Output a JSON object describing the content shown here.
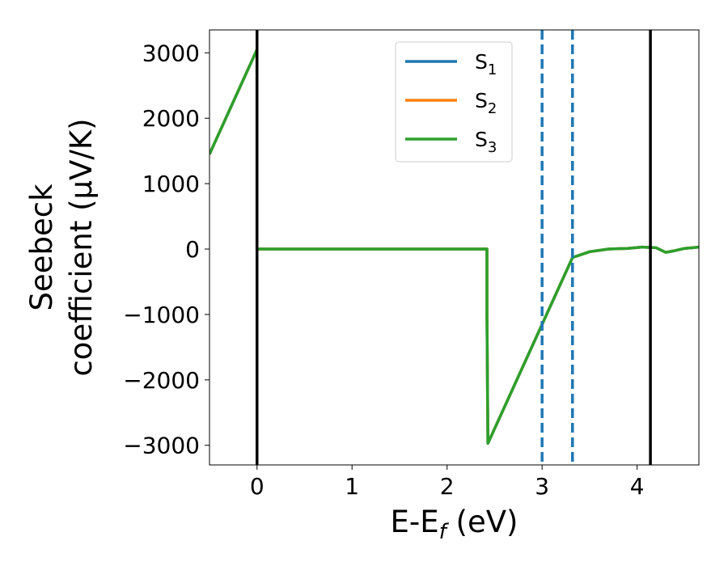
{
  "chart_data": {
    "type": "line",
    "xlabel": {
      "main": "E-E",
      "sub": "f",
      "suffix": " (eV)"
    },
    "ylabel": {
      "line1": "Seebeck",
      "line2": "coefficient  (μV/K)"
    },
    "xlim": [
      -0.5,
      4.65
    ],
    "ylim": [
      -3300,
      3350
    ],
    "xticks": [
      0,
      1,
      2,
      3,
      4
    ],
    "xtick_labels": [
      "0",
      "1",
      "2",
      "3",
      "4"
    ],
    "yticks": [
      3000,
      2000,
      1000,
      0,
      -1000,
      -2000,
      -3000
    ],
    "ytick_labels": [
      "3000",
      "2000",
      "1000",
      "0",
      "−1000",
      "−2000",
      "−3000"
    ],
    "grid": false,
    "legend_position": "upper-center",
    "series": [
      {
        "name": "S",
        "subscript": "1",
        "color": "#1f77b4",
        "x": [
          -0.5,
          0.0,
          0.0,
          2.42,
          2.42,
          2.43,
          3.0,
          3.32,
          3.5,
          3.7,
          3.9,
          4.05,
          4.2,
          4.3,
          4.38,
          4.5,
          4.65
        ],
        "y": [
          1450,
          3050,
          0,
          0,
          -1000,
          -2970,
          -1150,
          -130,
          -40,
          0,
          10,
          30,
          20,
          -50,
          -30,
          10,
          30
        ]
      },
      {
        "name": "S",
        "subscript": "2",
        "color": "#ff7f0e",
        "x": [
          -0.5,
          0.0,
          0.0,
          2.42,
          2.42,
          2.43,
          3.0,
          3.32,
          3.5,
          3.7,
          3.9,
          4.05,
          4.2,
          4.3,
          4.38,
          4.5,
          4.65
        ],
        "y": [
          1450,
          3050,
          0,
          0,
          -1000,
          -2970,
          -1150,
          -130,
          -40,
          0,
          10,
          30,
          20,
          -50,
          -30,
          10,
          30
        ]
      },
      {
        "name": "S",
        "subscript": "3",
        "color": "#2ca02c",
        "x": [
          -0.5,
          0.0,
          0.0,
          2.42,
          2.42,
          2.43,
          3.0,
          3.32,
          3.5,
          3.7,
          3.9,
          4.05,
          4.2,
          4.3,
          4.38,
          4.5,
          4.65
        ],
        "y": [
          1450,
          3050,
          0,
          0,
          -1000,
          -2970,
          -1150,
          -130,
          -40,
          0,
          10,
          30,
          20,
          -50,
          -30,
          10,
          30
        ]
      }
    ],
    "vlines_solid": {
      "color": "#000000",
      "x": [
        0.0,
        4.14
      ]
    },
    "vlines_dashed": {
      "color": "#1f77b4",
      "x": [
        3.0,
        3.32
      ]
    }
  }
}
